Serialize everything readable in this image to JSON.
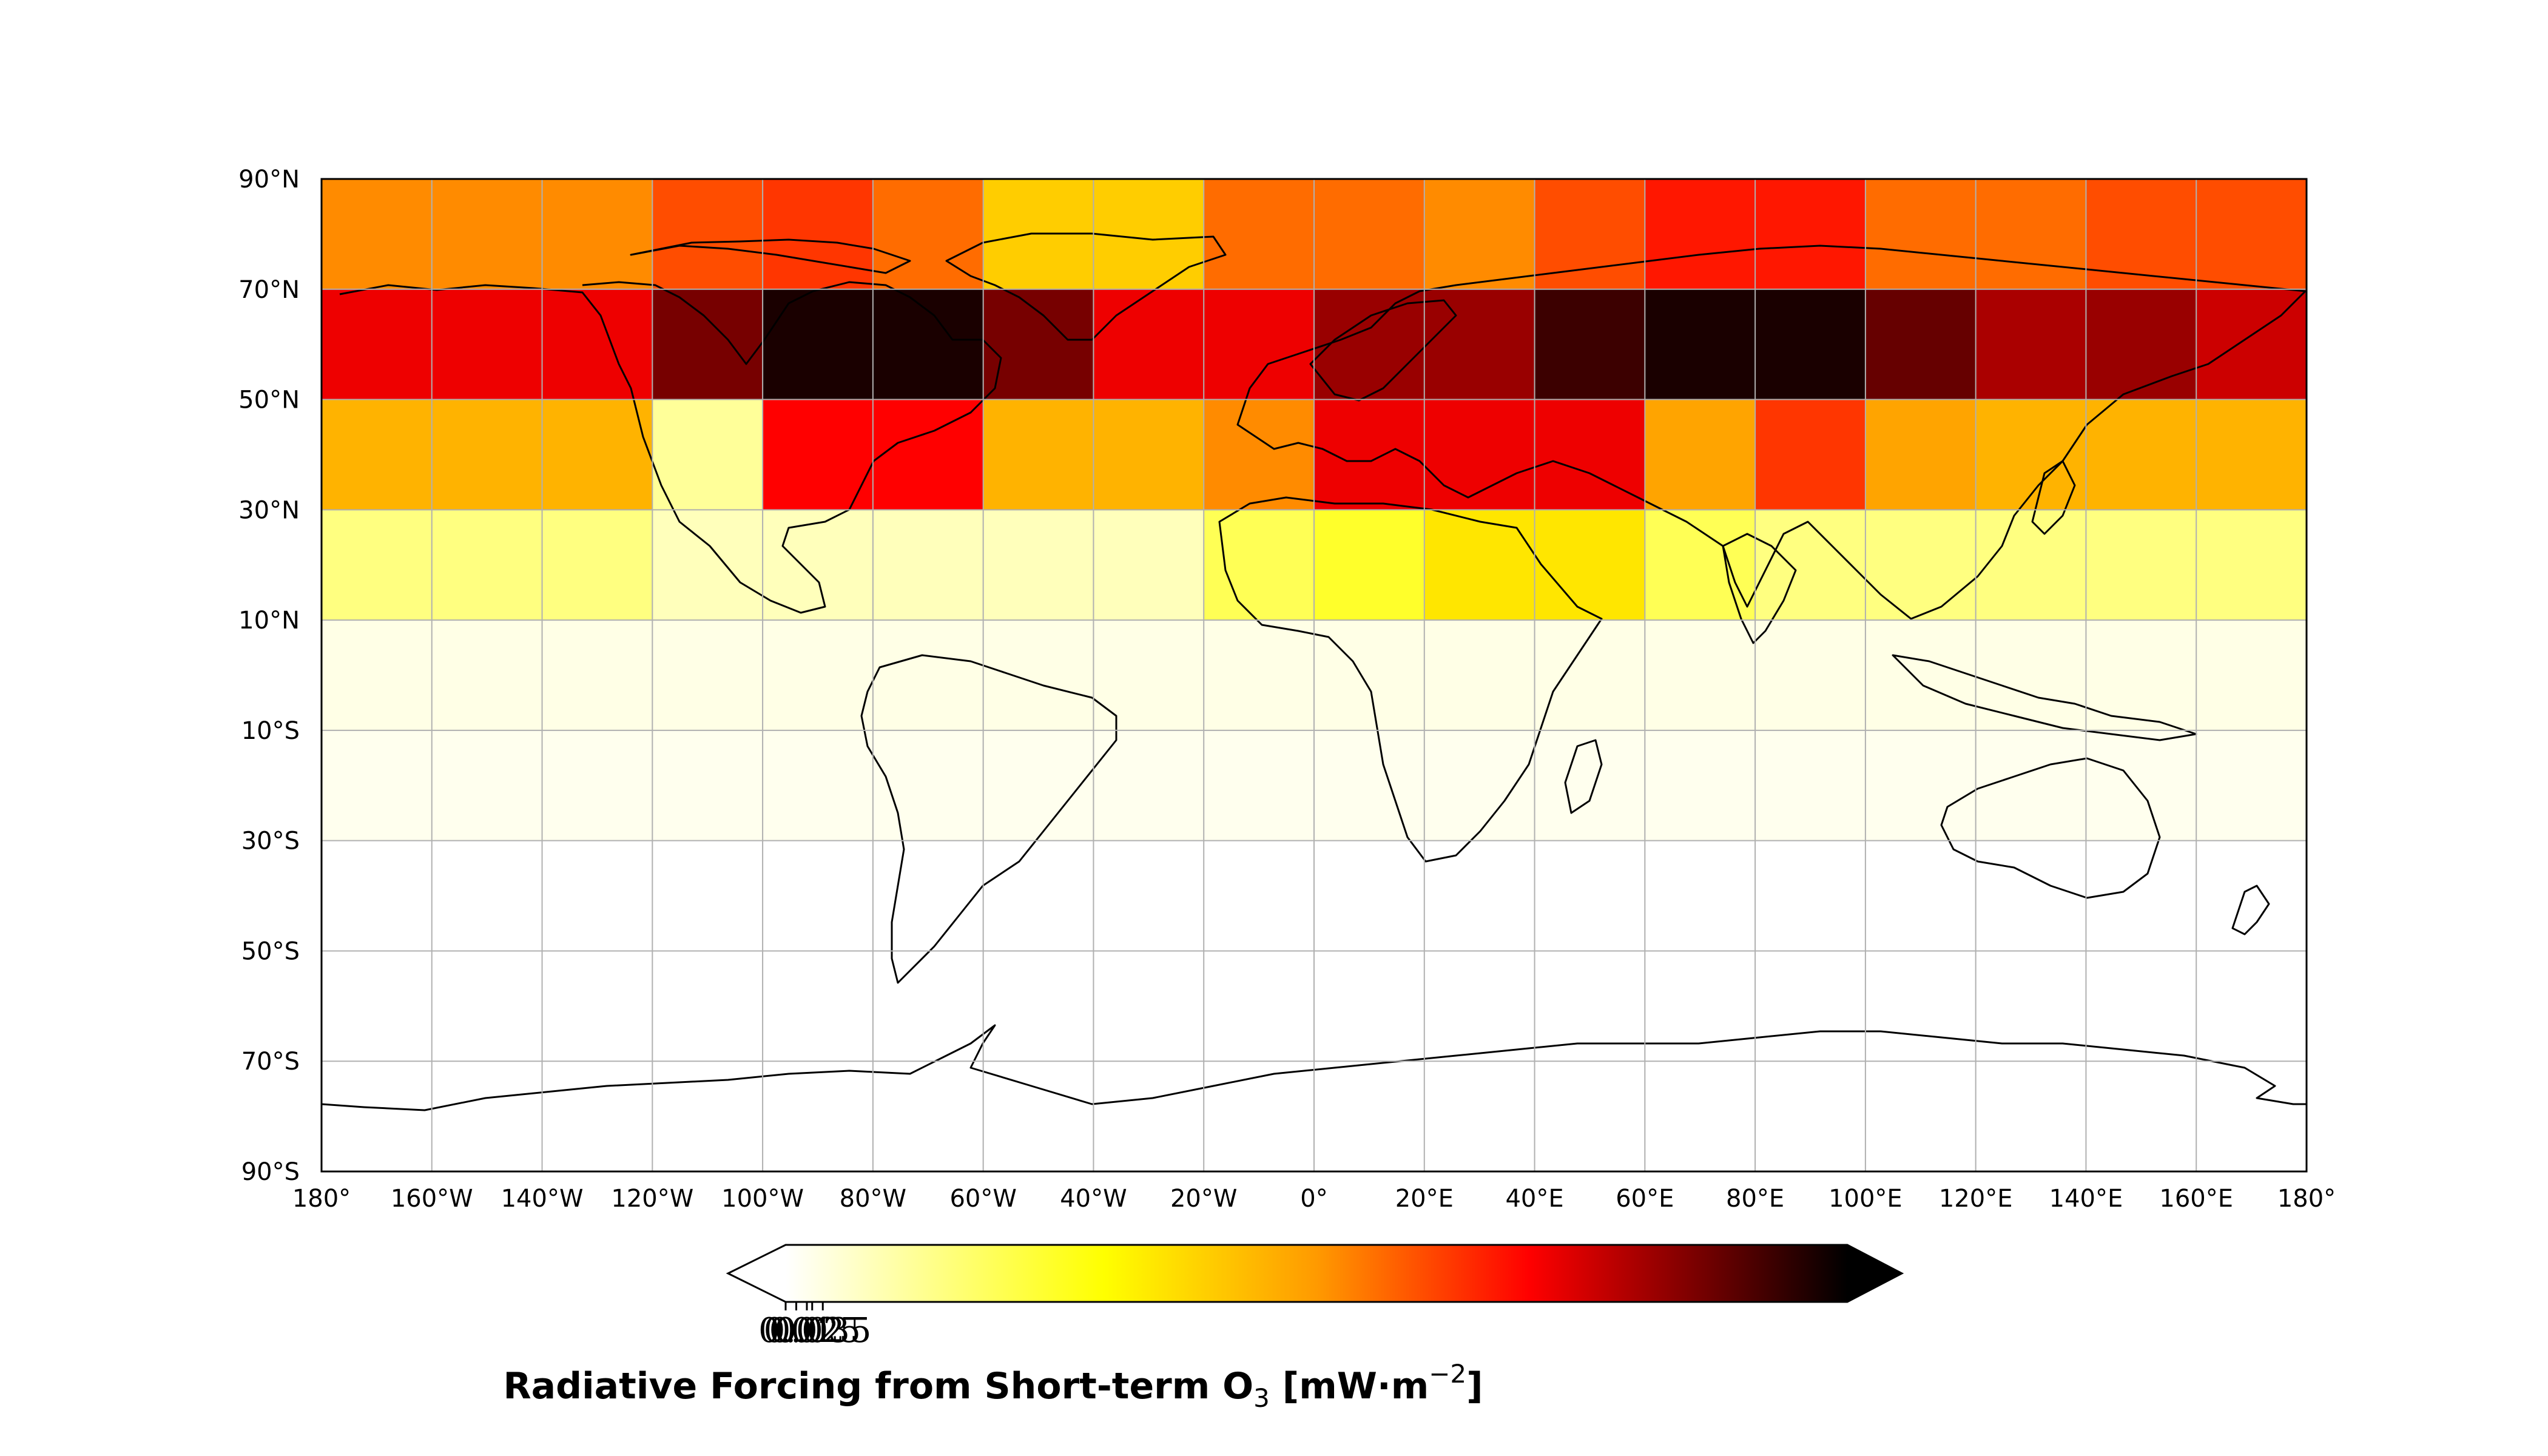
{
  "map": {
    "grid_cell_values_mW_m2": {
      "lat_bands": [
        "70N-90N",
        "50N-70N",
        "30N-50N",
        "10N-30N",
        "10S-10N",
        "30S-10S",
        "50S-30S",
        "70S-50S",
        "90S-70S"
      ],
      "lon_start_deg": -180,
      "lon_step_deg": 20,
      "rows": [
        [
          0.52,
          0.52,
          0.52,
          0.6,
          0.63,
          0.56,
          0.4,
          0.4,
          0.56,
          0.56,
          0.52,
          0.6,
          0.67,
          0.67,
          0.56,
          0.56,
          0.6,
          0.6
        ],
        [
          0.72,
          0.72,
          0.72,
          0.86,
          0.97,
          0.97,
          0.86,
          0.72,
          0.72,
          0.82,
          0.82,
          0.93,
          0.97,
          0.97,
          0.88,
          0.8,
          0.82,
          0.76
        ],
        [
          0.45,
          0.45,
          0.45,
          0.12,
          0.7,
          0.7,
          0.45,
          0.45,
          0.52,
          0.72,
          0.72,
          0.72,
          0.48,
          0.63,
          0.48,
          0.45,
          0.45,
          0.45
        ],
        [
          0.15,
          0.15,
          0.15,
          0.08,
          0.08,
          0.08,
          0.08,
          0.08,
          0.2,
          0.25,
          0.35,
          0.35,
          0.2,
          0.15,
          0.15,
          0.15,
          0.15,
          0.15
        ],
        [
          0.03,
          0.03,
          0.03,
          0.03,
          0.03,
          0.03,
          0.03,
          0.03,
          0.03,
          0.03,
          0.03,
          0.03,
          0.03,
          0.03,
          0.03,
          0.03,
          0.03,
          0.03
        ],
        [
          0.02,
          0.02,
          0.02,
          0.02,
          0.02,
          0.02,
          0.02,
          0.02,
          0.02,
          0.02,
          0.02,
          0.02,
          0.02,
          0.02,
          0.02,
          0.02,
          0.02,
          0.02
        ],
        [
          0.0,
          0.0,
          0.0,
          0.0,
          0.0,
          0.0,
          0.0,
          0.0,
          0.0,
          0.0,
          0.0,
          0.0,
          0.0,
          0.0,
          0.0,
          0.0,
          0.0,
          0.0
        ],
        [
          0.0,
          0.0,
          0.0,
          0.0,
          0.0,
          0.0,
          0.0,
          0.0,
          0.0,
          0.0,
          0.0,
          0.0,
          0.0,
          0.0,
          0.0,
          0.0,
          0.0,
          0.0
        ],
        [
          0.0,
          0.0,
          0.0,
          0.0,
          0.0,
          0.0,
          0.0,
          0.0,
          0.0,
          0.0,
          0.0,
          0.0,
          0.0,
          0.0,
          0.0,
          0.0,
          0.0,
          0.0
        ]
      ]
    },
    "lat_ticks": [
      "90°N",
      "70°N",
      "50°N",
      "30°N",
      "10°N",
      "10°S",
      "30°S",
      "50°S",
      "70°S",
      "90°S"
    ],
    "lon_ticks": [
      "180°",
      "160°W",
      "140°W",
      "120°W",
      "100°W",
      "80°W",
      "60°W",
      "40°W",
      "20°W",
      "0°",
      "20°E",
      "40°E",
      "60°E",
      "80°E",
      "100°E",
      "120°E",
      "140°E",
      "160°E",
      "180°"
    ],
    "colormap": "hot_r",
    "grid": true
  },
  "colorbar": {
    "tick_labels": [
      "0",
      "0.01",
      "0.02",
      "0.025",
      "0.035"
    ],
    "extend": "both",
    "title_main": "Radiative Forcing from Short-term O",
    "title_sub": "3",
    "title_unit_pre": " [mW·m",
    "title_sup": "−2",
    "title_unit_post": "]"
  },
  "colors": {
    "cmap_stops": [
      "#ffffff",
      "#ffff00",
      "#ff8c00",
      "#ff0000",
      "#800000",
      "#000000"
    ]
  }
}
